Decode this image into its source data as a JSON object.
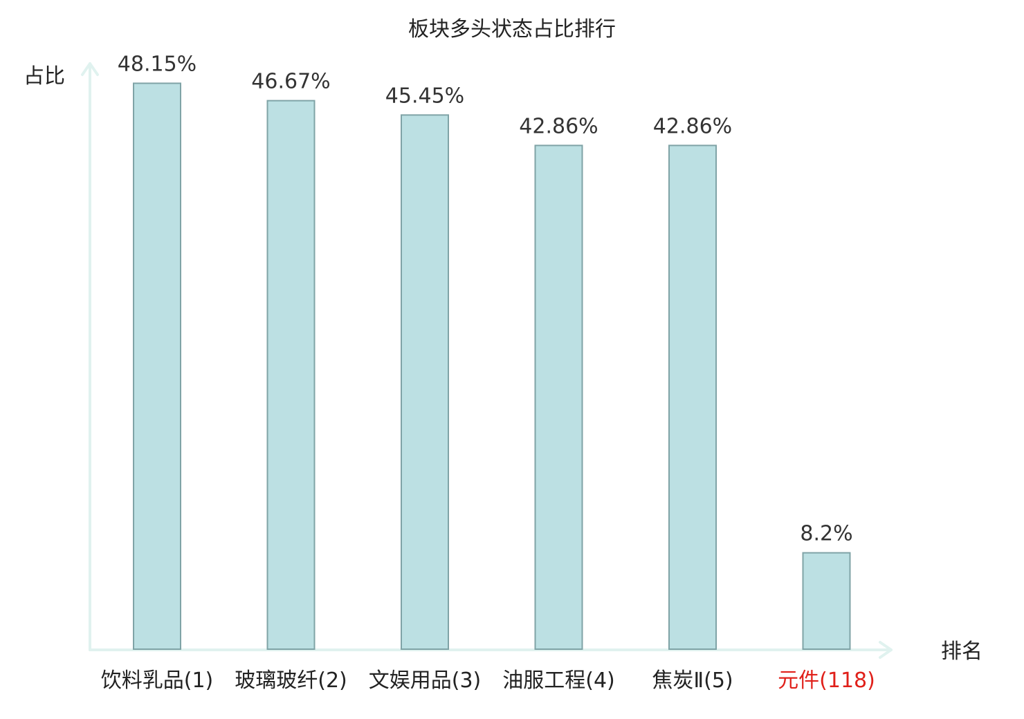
{
  "chart_data": {
    "type": "bar",
    "title": "板块多头状态占比排行",
    "xlabel": "排名",
    "ylabel": "占比",
    "categories": [
      "饮料乳品(1)",
      "玻璃玻纤(2)",
      "文娱用品(3)",
      "油服工程(4)",
      "焦炭Ⅱ(5)",
      "元件(118)"
    ],
    "values": [
      48.15,
      46.67,
      45.45,
      42.86,
      42.86,
      8.2
    ],
    "value_labels": [
      "48.15%",
      "46.67%",
      "45.45%",
      "42.86%",
      "42.86%",
      "8.2%"
    ],
    "highlight_index": 5,
    "ylim": [
      0,
      50
    ],
    "grid": false,
    "colors": {
      "bar_fill": "#bce0e3",
      "bar_stroke": "#7fa3a6",
      "axis": "#e0f2ef",
      "highlight_text": "#e0201a",
      "text": "#222222"
    }
  }
}
